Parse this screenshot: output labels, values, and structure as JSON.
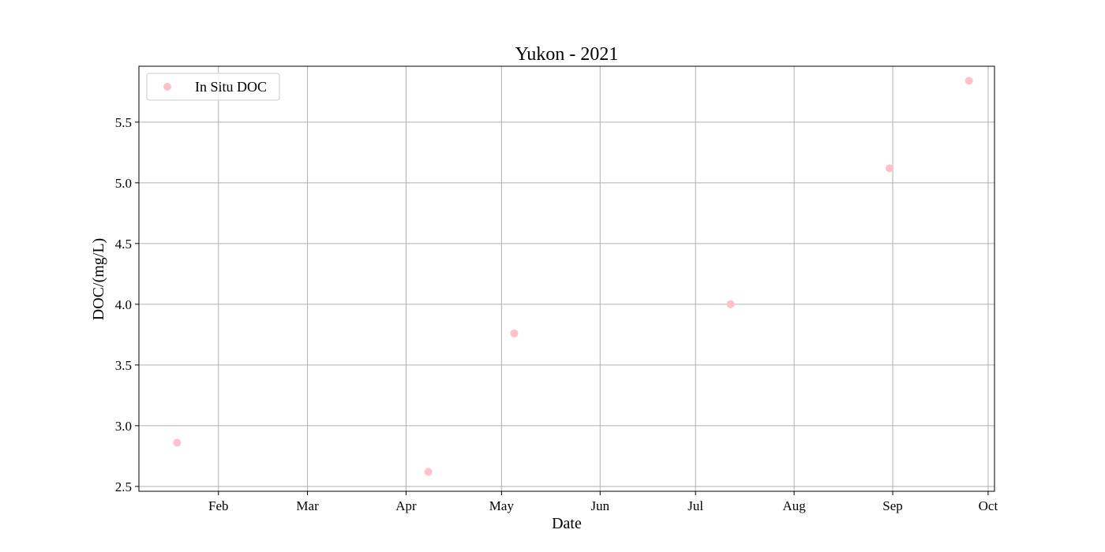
{
  "chart_data": {
    "type": "scatter",
    "title": "Yukon - 2021",
    "xlabel": "Date",
    "ylabel": "DOC/(mg/L)",
    "xlim": [
      "2021-01-07",
      "2021-10-03"
    ],
    "ylim": [
      2.46,
      5.96
    ],
    "grid": true,
    "legend_position": "top-left",
    "x_ticks": [
      {
        "date": "2021-02-01",
        "label": "Feb"
      },
      {
        "date": "2021-03-01",
        "label": "Mar"
      },
      {
        "date": "2021-04-01",
        "label": "Apr"
      },
      {
        "date": "2021-05-01",
        "label": "May"
      },
      {
        "date": "2021-06-01",
        "label": "Jun"
      },
      {
        "date": "2021-07-01",
        "label": "Jul"
      },
      {
        "date": "2021-08-01",
        "label": "Aug"
      },
      {
        "date": "2021-09-01",
        "label": "Sep"
      },
      {
        "date": "2021-10-01",
        "label": "Oct"
      }
    ],
    "y_ticks": [
      {
        "value": 2.5,
        "label": "2.5"
      },
      {
        "value": 3.0,
        "label": "3.0"
      },
      {
        "value": 3.5,
        "label": "3.5"
      },
      {
        "value": 4.0,
        "label": "4.0"
      },
      {
        "value": 4.5,
        "label": "4.5"
      },
      {
        "value": 5.0,
        "label": "5.0"
      },
      {
        "value": 5.5,
        "label": "5.5"
      }
    ],
    "series": [
      {
        "name": "In Situ DOC",
        "color": "#ffc0cb",
        "points": [
          {
            "x": "2021-01-19",
            "y": 2.86
          },
          {
            "x": "2021-04-08",
            "y": 2.62
          },
          {
            "x": "2021-05-05",
            "y": 3.76
          },
          {
            "x": "2021-07-12",
            "y": 4.0
          },
          {
            "x": "2021-08-31",
            "y": 5.12
          },
          {
            "x": "2021-09-25",
            "y": 5.84
          }
        ]
      }
    ]
  }
}
